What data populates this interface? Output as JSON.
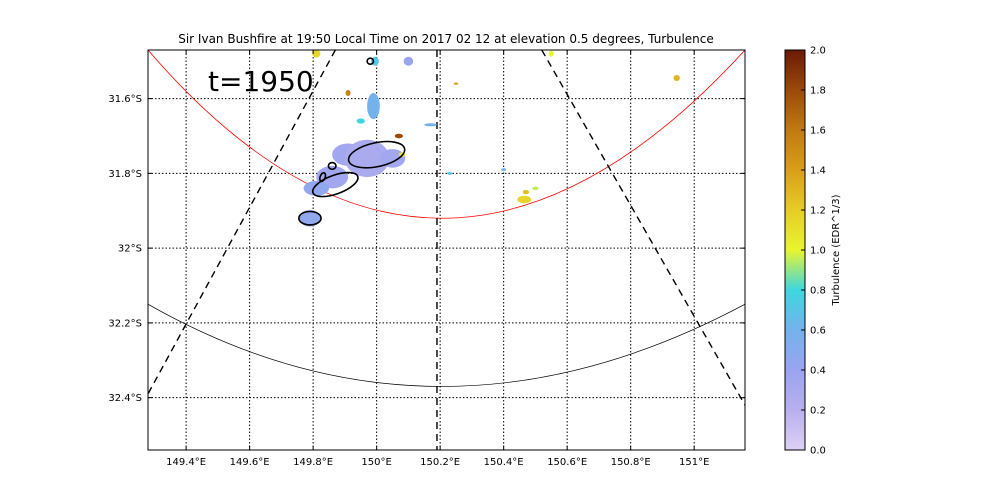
{
  "chart_data": {
    "type": "heatmap",
    "title": "Sir Ivan Bushfire at 19:50 Local Time on 2017 02 12 at elevation 0.5 degrees, Turbulence",
    "annotation": "t=1950",
    "xlabel": "",
    "ylabel": "",
    "xlim": [
      149.28,
      151.16
    ],
    "ylim": [
      -32.54,
      -31.47
    ],
    "x_ticks": [
      149.4,
      149.6,
      149.8,
      150.0,
      150.2,
      150.4,
      150.6,
      150.8,
      151.0
    ],
    "x_tick_labels": [
      "149.4°E",
      "149.6°E",
      "149.8°E",
      "150°E",
      "150.2°E",
      "150.4°E",
      "150.6°E",
      "150.8°E",
      "151°E"
    ],
    "y_ticks": [
      -31.6,
      -31.8,
      -32.0,
      -32.2,
      -32.4
    ],
    "y_tick_labels": [
      "31.6°S",
      "31.8°S",
      "32°S",
      "32.2°S",
      "32.4°S"
    ],
    "grid": true,
    "radar_center_lon": 150.19,
    "range_ring_inner_min_lat": -31.92,
    "range_ring_outer_min_lat": -32.37,
    "colorbar": {
      "label": "Turbulence (EDR^1/3)",
      "min": 0.0,
      "max": 2.0,
      "ticks": [
        0.0,
        0.2,
        0.4,
        0.6,
        0.8,
        1.0,
        1.2,
        1.4,
        1.6,
        1.8,
        2.0
      ],
      "tick_labels": [
        "0.0",
        "0.2",
        "0.4",
        "0.6",
        "0.8",
        "1.0",
        "1.2",
        "1.4",
        "1.6",
        "1.8",
        "2.0"
      ],
      "stops": [
        [
          0.0,
          "#ddd1f5"
        ],
        [
          0.2,
          "#b9afee"
        ],
        [
          0.4,
          "#9aa4f0"
        ],
        [
          0.6,
          "#74b2ec"
        ],
        [
          0.8,
          "#3fd6e0"
        ],
        [
          1.0,
          "#e8f530"
        ],
        [
          1.2,
          "#e6cc26"
        ],
        [
          1.4,
          "#d99e1a"
        ],
        [
          1.6,
          "#c07a12"
        ],
        [
          1.8,
          "#9a4a0b"
        ],
        [
          2.0,
          "#6a1a05"
        ]
      ]
    },
    "cells": [
      {
        "lon": 149.91,
        "lat": -31.75,
        "rx": 0.05,
        "ry": 0.03,
        "value": 0.35
      },
      {
        "lon": 149.97,
        "lat": -31.76,
        "rx": 0.07,
        "ry": 0.05,
        "value": 0.3
      },
      {
        "lon": 150.05,
        "lat": -31.76,
        "rx": 0.04,
        "ry": 0.025,
        "value": 0.35
      },
      {
        "lon": 149.86,
        "lat": -31.81,
        "rx": 0.05,
        "ry": 0.03,
        "value": 0.35
      },
      {
        "lon": 149.81,
        "lat": -31.84,
        "rx": 0.04,
        "ry": 0.02,
        "value": 0.45
      },
      {
        "lon": 149.79,
        "lat": -31.92,
        "rx": 0.035,
        "ry": 0.022,
        "value": 0.45
      },
      {
        "lon": 149.99,
        "lat": -31.62,
        "rx": 0.02,
        "ry": 0.035,
        "value": 0.6
      },
      {
        "lon": 149.995,
        "lat": -31.5,
        "rx": 0.012,
        "ry": 0.012,
        "value": 0.7
      },
      {
        "lon": 150.1,
        "lat": -31.5,
        "rx": 0.015,
        "ry": 0.012,
        "value": 0.4
      },
      {
        "lon": 149.95,
        "lat": -31.66,
        "rx": 0.013,
        "ry": 0.007,
        "value": 0.8
      },
      {
        "lon": 150.08,
        "lat": -31.75,
        "rx": 0.01,
        "ry": 0.006,
        "value": 1.05
      },
      {
        "lon": 150.17,
        "lat": -31.67,
        "rx": 0.02,
        "ry": 0.004,
        "value": 0.6
      },
      {
        "lon": 150.465,
        "lat": -31.87,
        "rx": 0.022,
        "ry": 0.01,
        "value": 1.15
      },
      {
        "lon": 150.47,
        "lat": -31.85,
        "rx": 0.01,
        "ry": 0.006,
        "value": 1.25
      },
      {
        "lon": 150.5,
        "lat": -31.84,
        "rx": 0.01,
        "ry": 0.005,
        "value": 0.95
      },
      {
        "lon": 150.4,
        "lat": -31.79,
        "rx": 0.008,
        "ry": 0.004,
        "value": 0.6
      },
      {
        "lon": 150.23,
        "lat": -31.8,
        "rx": 0.008,
        "ry": 0.004,
        "value": 0.7
      },
      {
        "lon": 149.91,
        "lat": -31.585,
        "rx": 0.008,
        "ry": 0.008,
        "value": 1.55
      },
      {
        "lon": 150.07,
        "lat": -31.7,
        "rx": 0.013,
        "ry": 0.006,
        "value": 1.8
      },
      {
        "lon": 150.945,
        "lat": -31.545,
        "rx": 0.01,
        "ry": 0.008,
        "value": 1.3
      },
      {
        "lon": 150.25,
        "lat": -31.56,
        "rx": 0.007,
        "ry": 0.003,
        "value": 1.4
      },
      {
        "lon": 149.81,
        "lat": -31.48,
        "rx": 0.013,
        "ry": 0.01,
        "value": 1.15
      },
      {
        "lon": 150.55,
        "lat": -31.48,
        "rx": 0.008,
        "ry": 0.008,
        "value": 1.0
      }
    ],
    "contours": [
      {
        "lon": 150.0,
        "lat": -31.75,
        "rx": 0.09,
        "ry": 0.032,
        "rot": -12
      },
      {
        "lon": 149.87,
        "lat": -31.83,
        "rx": 0.075,
        "ry": 0.025,
        "rot": -20
      },
      {
        "lon": 149.79,
        "lat": -31.92,
        "rx": 0.035,
        "ry": 0.018,
        "rot": 0
      },
      {
        "lon": 149.86,
        "lat": -31.78,
        "rx": 0.012,
        "ry": 0.009,
        "rot": 0
      },
      {
        "lon": 149.83,
        "lat": -31.81,
        "rx": 0.008,
        "ry": 0.012,
        "rot": 20
      },
      {
        "lon": 149.98,
        "lat": -31.5,
        "rx": 0.01,
        "ry": 0.008,
        "rot": 0
      }
    ]
  }
}
